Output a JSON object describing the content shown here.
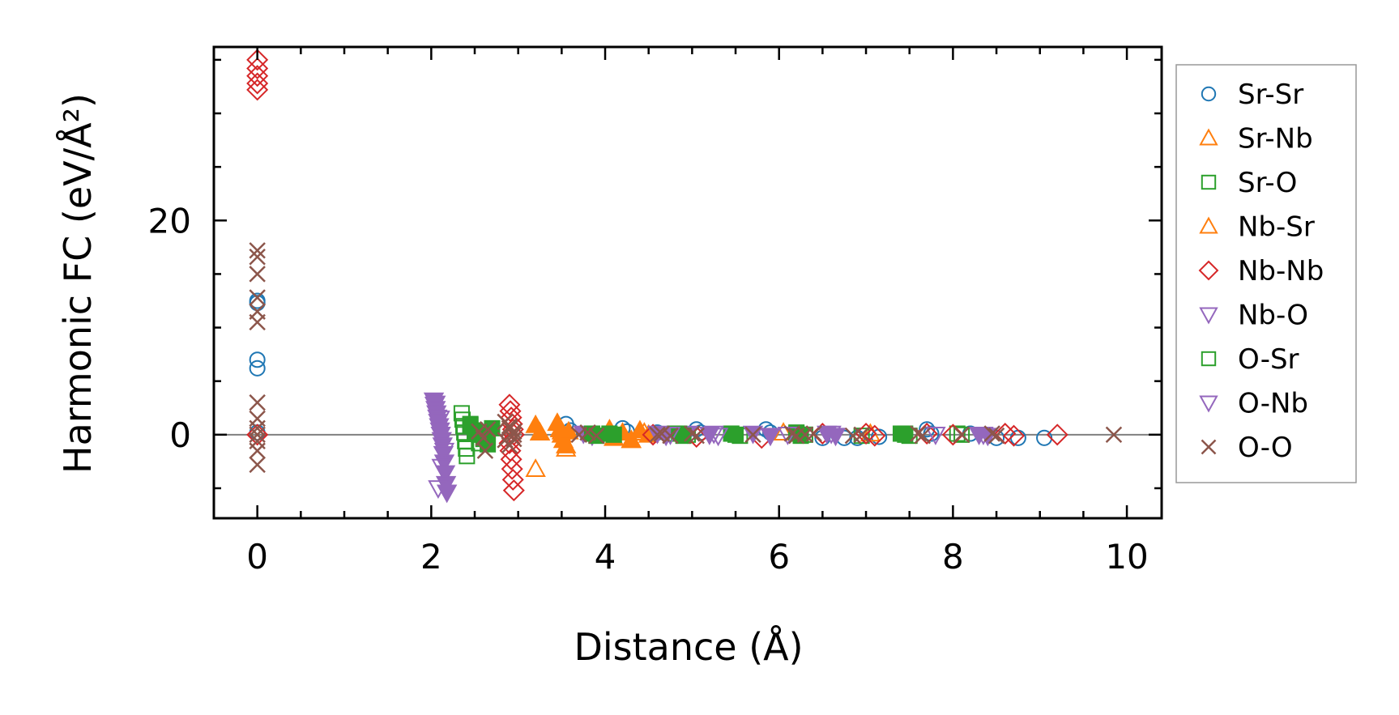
{
  "chart_data": {
    "type": "scatter",
    "xlabel": "Distance (Å)",
    "ylabel": "Harmonic FC (eV/Å²)",
    "xlim": [
      -0.5,
      10.4
    ],
    "ylim": [
      -7.8,
      36.2
    ],
    "xticks": [
      0,
      2,
      4,
      6,
      8,
      10
    ],
    "yticks": [
      0,
      20
    ],
    "x_minor_step": 0.5,
    "y_minor_step": 5,
    "grid": false,
    "legend_position": "outside-right",
    "zero_line": true,
    "series": [
      {
        "name": "Sr-Sr",
        "color": "#1f77b4",
        "marker": "circle-open",
        "x": [
          0,
          0,
          0,
          0,
          0,
          3.55,
          3.6,
          4.2,
          4.25,
          4.6,
          5.05,
          5.1,
          5.85,
          5.9,
          6.5,
          6.75,
          6.9,
          7.15,
          7.7,
          7.75,
          8.2,
          8.5,
          8.75,
          9.05
        ],
        "y": [
          12.5,
          12.3,
          7.0,
          6.2,
          0.2,
          1.0,
          0.4,
          0.6,
          0.3,
          0.2,
          0.5,
          0.2,
          0.5,
          0.2,
          -0.3,
          -0.3,
          -0.3,
          -0.2,
          0.5,
          0.1,
          0.1,
          -0.3,
          -0.3,
          -0.3
        ]
      },
      {
        "name": "Sr-Nb",
        "color": "#ff7f0e",
        "marker": "triangle-up-open",
        "x": [
          3.2,
          3.25,
          3.5,
          3.55,
          4.3,
          4.45,
          6.05,
          7.05
        ],
        "y": [
          -3.2,
          0.2,
          0.3,
          -1.3,
          -0.5,
          0.2,
          0.2,
          0.1
        ]
      },
      {
        "name": "Sr-O",
        "color": "#2ca02c",
        "marker": "square-open",
        "x": [
          2.35,
          2.36,
          2.37,
          2.38,
          2.39,
          2.4,
          2.41,
          2.45,
          2.5,
          2.55,
          3.85,
          4.05,
          4.8,
          4.95,
          5.45,
          5.55,
          6.2,
          6.3,
          6.95,
          7.45,
          7.5,
          8.05,
          8.1
        ],
        "y": [
          2.0,
          1.4,
          0.8,
          0.2,
          -0.6,
          -1.3,
          -2.0,
          1.0,
          0.3,
          -0.8,
          0.1,
          0.1,
          0.1,
          0.0,
          0.1,
          -0.1,
          0.2,
          0.0,
          -0.1,
          0.1,
          -0.1,
          0.1,
          0.0
        ]
      },
      {
        "name": "Nb-Sr",
        "color": "#ff7f0e",
        "marker": "triangle-up-filled",
        "x": [
          3.2,
          3.25,
          3.45,
          3.48,
          3.5,
          3.52,
          3.55,
          3.58,
          4.05,
          4.1,
          4.2,
          4.3,
          4.4,
          4.5
        ],
        "y": [
          0.9,
          0.2,
          1.1,
          0.5,
          0.0,
          -0.5,
          -1.0,
          0.3,
          0.5,
          -0.3,
          0.2,
          -0.5,
          0.4,
          0.0
        ]
      },
      {
        "name": "Nb-Nb",
        "color": "#d62728",
        "marker": "diamond-open",
        "x": [
          0,
          0,
          0,
          0,
          0,
          0,
          2.9,
          2.91,
          2.92,
          2.93,
          2.94,
          2.95,
          2.9,
          2.91,
          2.92,
          2.93,
          2.94,
          2.95,
          4.55,
          5.05,
          5.8,
          6.5,
          7.0,
          7.1,
          7.7,
          8.0,
          8.6,
          8.7,
          9.2
        ],
        "y": [
          35.0,
          34.2,
          33.5,
          32.8,
          32.2,
          0.0,
          2.8,
          2.2,
          1.6,
          1.0,
          0.5,
          0.0,
          -0.8,
          -1.5,
          -2.3,
          -3.2,
          -4.2,
          -5.2,
          0.0,
          -0.2,
          -0.3,
          0.1,
          0.1,
          -0.1,
          0.1,
          0.0,
          0.1,
          -0.1,
          0.0
        ]
      },
      {
        "name": "Nb-O",
        "color": "#9467bd",
        "marker": "triangle-down-filled",
        "x": [
          2.03,
          2.04,
          2.05,
          2.06,
          2.07,
          2.08,
          2.09,
          2.1,
          2.11,
          2.12,
          2.13,
          2.14,
          2.15,
          2.16,
          2.17,
          2.18,
          3.75,
          3.85,
          4.6,
          4.7,
          4.95,
          5.2,
          5.7,
          5.9,
          6.55,
          6.65,
          8.3,
          8.4
        ],
        "y": [
          3.2,
          2.8,
          2.4,
          2.0,
          1.6,
          1.2,
          0.8,
          0.4,
          0.0,
          -0.5,
          -1.0,
          -1.8,
          -2.6,
          -3.6,
          -4.6,
          -5.4,
          0.1,
          -0.1,
          0.1,
          -0.1,
          0.1,
          0.0,
          0.1,
          -0.1,
          0.1,
          -0.1,
          0.0,
          -0.1
        ]
      },
      {
        "name": "O-Sr",
        "color": "#2ca02c",
        "marker": "square-filled",
        "x": [
          2.45,
          2.5,
          2.55,
          2.6,
          2.65,
          2.7,
          3.85,
          3.9,
          4.05,
          4.1,
          4.85,
          4.9,
          5.45,
          5.5,
          6.2,
          6.25,
          7.4,
          7.45
        ],
        "y": [
          0.9,
          0.4,
          0.0,
          -0.4,
          -0.9,
          0.6,
          0.1,
          -0.1,
          0.1,
          0.0,
          0.1,
          -0.1,
          0.1,
          0.0,
          0.1,
          -0.1,
          0.1,
          0.0
        ]
      },
      {
        "name": "O-Nb",
        "color": "#9467bd",
        "marker": "triangle-down-open",
        "x": [
          2.05,
          2.1,
          2.15,
          2.12,
          2.08,
          4.75,
          5.25,
          5.3,
          6.1,
          6.6,
          7.8,
          8.35
        ],
        "y": [
          2.9,
          1.5,
          -1.5,
          -3.0,
          -5.0,
          0.0,
          0.1,
          -0.1,
          0.0,
          0.1,
          0.0,
          0.0
        ]
      },
      {
        "name": "O-O",
        "color": "#8c564b",
        "marker": "x",
        "x": [
          0,
          0,
          0,
          0,
          0,
          0,
          0,
          0,
          0,
          0,
          0,
          0,
          0,
          2.55,
          2.6,
          2.62,
          2.65,
          2.85,
          2.9,
          2.95,
          2.85,
          2.9,
          2.95,
          2.9,
          2.95,
          3.7,
          3.8,
          3.9,
          4.6,
          4.65,
          4.75,
          5.0,
          5.05,
          5.7,
          6.15,
          6.2,
          6.3,
          6.4,
          6.85,
          6.95,
          7.6,
          7.65,
          8.1,
          8.45,
          8.5,
          9.85
        ],
        "y": [
          17.2,
          16.6,
          15.0,
          12.8,
          11.5,
          10.5,
          3.0,
          1.5,
          0.6,
          0.0,
          -0.6,
          -1.5,
          -2.8,
          0.3,
          -0.3,
          -1.5,
          0.5,
          1.2,
          0.6,
          0.0,
          -0.5,
          -1.0,
          0.3,
          0.8,
          -0.4,
          0.0,
          0.2,
          -0.1,
          0.0,
          0.1,
          -0.1,
          0.1,
          -0.1,
          0.0,
          0.1,
          -0.1,
          0.0,
          0.1,
          -0.1,
          0.0,
          0.1,
          -0.1,
          0.0,
          0.1,
          -0.1,
          0.0
        ]
      }
    ]
  }
}
